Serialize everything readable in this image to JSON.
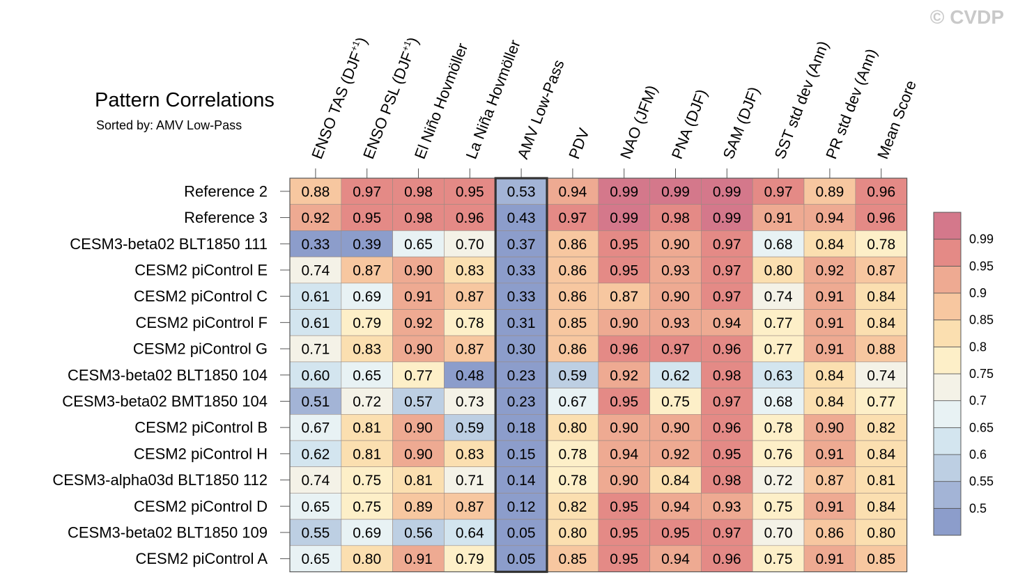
{
  "watermark": "© CVDP",
  "chart_data": {
    "type": "heatmap",
    "title": "Pattern Correlations",
    "subtitle": "Sorted by: AMV Low-Pass",
    "highlight_column": "AMV Low-Pass",
    "columns": [
      "ENSO TAS (DJF+1)",
      "ENSO PSL (DJF+1)",
      "El Niño Hovmöller",
      "La Niña Hovmöller",
      "AMV Low-Pass",
      "PDV",
      "NAO (JFM)",
      "PNA (DJF)",
      "SAM (DJF)",
      "SST std dev (Ann)",
      "PR std dev (Ann)",
      "Mean Score"
    ],
    "column_labels": [
      {
        "text": "ENSO TAS (DJF",
        "sup": "+1",
        "tail": ")"
      },
      {
        "text": "ENSO PSL (DJF",
        "sup": "+1",
        "tail": ")"
      },
      {
        "text": "El Niño Hovmöller",
        "sup": "",
        "tail": ""
      },
      {
        "text": "La Niña Hovmöller",
        "sup": "",
        "tail": ""
      },
      {
        "text": "AMV Low-Pass",
        "sup": "",
        "tail": ""
      },
      {
        "text": "PDV",
        "sup": "",
        "tail": ""
      },
      {
        "text": "NAO (JFM)",
        "sup": "",
        "tail": ""
      },
      {
        "text": "PNA (DJF)",
        "sup": "",
        "tail": ""
      },
      {
        "text": "SAM (DJF)",
        "sup": "",
        "tail": ""
      },
      {
        "text": "SST std dev (Ann)",
        "sup": "",
        "tail": ""
      },
      {
        "text": "PR std dev (Ann)",
        "sup": "",
        "tail": ""
      },
      {
        "text": "Mean Score",
        "sup": "",
        "tail": ""
      }
    ],
    "rows": [
      {
        "name": "Reference 2",
        "values": [
          "0.88",
          "0.97",
          "0.98",
          "0.95",
          "0.53",
          "0.94",
          "0.99",
          "0.99",
          "0.99",
          "0.97",
          "0.89",
          "0.96"
        ]
      },
      {
        "name": "Reference 3",
        "values": [
          "0.92",
          "0.95",
          "0.98",
          "0.96",
          "0.43",
          "0.97",
          "0.99",
          "0.98",
          "0.99",
          "0.91",
          "0.94",
          "0.96"
        ]
      },
      {
        "name": "CESM3-beta02 BLT1850 111",
        "values": [
          "0.33",
          "0.39",
          "0.65",
          "0.70",
          "0.37",
          "0.86",
          "0.95",
          "0.90",
          "0.97",
          "0.68",
          "0.84",
          "0.78"
        ]
      },
      {
        "name": "CESM2 piControl E",
        "values": [
          "0.74",
          "0.87",
          "0.90",
          "0.83",
          "0.33",
          "0.86",
          "0.95",
          "0.93",
          "0.97",
          "0.80",
          "0.92",
          "0.87"
        ]
      },
      {
        "name": "CESM2 piControl C",
        "values": [
          "0.61",
          "0.69",
          "0.91",
          "0.87",
          "0.33",
          "0.86",
          "0.87",
          "0.90",
          "0.97",
          "0.74",
          "0.91",
          "0.84"
        ]
      },
      {
        "name": "CESM2 piControl F",
        "values": [
          "0.61",
          "0.79",
          "0.92",
          "0.78",
          "0.31",
          "0.85",
          "0.90",
          "0.93",
          "0.94",
          "0.77",
          "0.91",
          "0.84"
        ]
      },
      {
        "name": "CESM2 piControl G",
        "values": [
          "0.71",
          "0.83",
          "0.90",
          "0.87",
          "0.30",
          "0.86",
          "0.96",
          "0.97",
          "0.96",
          "0.77",
          "0.91",
          "0.88"
        ]
      },
      {
        "name": "CESM3-beta02 BLT1850 104",
        "values": [
          "0.60",
          "0.65",
          "0.77",
          "0.48",
          "0.23",
          "0.59",
          "0.92",
          "0.62",
          "0.98",
          "0.63",
          "0.84",
          "0.74"
        ]
      },
      {
        "name": "CESM3-beta02 BMT1850 104",
        "values": [
          "0.51",
          "0.72",
          "0.57",
          "0.73",
          "0.23",
          "0.67",
          "0.95",
          "0.75",
          "0.97",
          "0.68",
          "0.84",
          "0.77"
        ]
      },
      {
        "name": "CESM2 piControl B",
        "values": [
          "0.67",
          "0.81",
          "0.90",
          "0.59",
          "0.18",
          "0.80",
          "0.90",
          "0.90",
          "0.96",
          "0.78",
          "0.90",
          "0.82"
        ]
      },
      {
        "name": "CESM2 piControl H",
        "values": [
          "0.62",
          "0.81",
          "0.90",
          "0.83",
          "0.15",
          "0.78",
          "0.94",
          "0.92",
          "0.95",
          "0.76",
          "0.91",
          "0.84"
        ]
      },
      {
        "name": "CESM3-alpha03d BLT1850 112",
        "values": [
          "0.74",
          "0.75",
          "0.81",
          "0.71",
          "0.14",
          "0.78",
          "0.90",
          "0.84",
          "0.98",
          "0.72",
          "0.87",
          "0.81"
        ]
      },
      {
        "name": "CESM2 piControl D",
        "values": [
          "0.65",
          "0.75",
          "0.89",
          "0.87",
          "0.12",
          "0.82",
          "0.95",
          "0.94",
          "0.93",
          "0.75",
          "0.91",
          "0.84"
        ]
      },
      {
        "name": "CESM3-beta02 BLT1850 109",
        "values": [
          "0.55",
          "0.69",
          "0.56",
          "0.64",
          "0.05",
          "0.80",
          "0.95",
          "0.95",
          "0.97",
          "0.70",
          "0.86",
          "0.80"
        ]
      },
      {
        "name": "CESM2 piControl A",
        "values": [
          "0.65",
          "0.80",
          "0.91",
          "0.79",
          "0.05",
          "0.85",
          "0.95",
          "0.94",
          "0.96",
          "0.75",
          "0.91",
          "0.85"
        ]
      }
    ],
    "colorbar": {
      "labels": [
        "0.99",
        "0.95",
        "0.9",
        "0.85",
        "0.8",
        "0.75",
        "0.7",
        "0.65",
        "0.6",
        "0.55",
        "0.5"
      ],
      "thresholds": [
        0.5,
        0.55,
        0.6,
        0.65,
        0.7,
        0.75,
        0.8,
        0.85,
        0.9,
        0.95,
        0.99
      ],
      "colors": [
        "#8c9dcb",
        "#a3b4d6",
        "#bdcfe3",
        "#d3e5ef",
        "#e8f2f4",
        "#f4f2e7",
        "#fdefc8",
        "#fbdfb0",
        "#f7c7a0",
        "#eeaa92",
        "#e48a86",
        "#d4788b"
      ]
    }
  }
}
